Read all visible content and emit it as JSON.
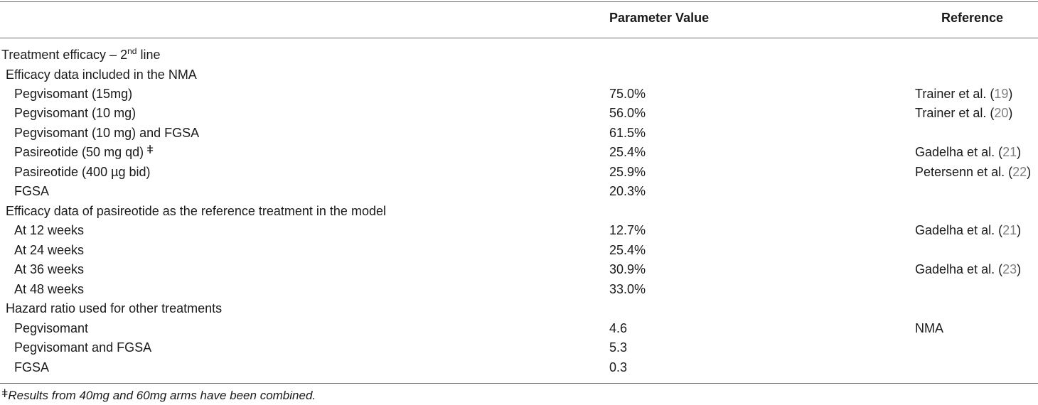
{
  "header": {
    "col_value": "Parameter Value",
    "col_reference": "Reference"
  },
  "section": {
    "title_main": "Treatment efficacy – 2",
    "title_sup": "nd",
    "title_tail": " line"
  },
  "rows": [
    {
      "label": "Efficacy data included in the NMA",
      "value": "",
      "ref": "",
      "num": ""
    },
    {
      "label": "Pegvisomant (15mg)",
      "value": "75.0%",
      "ref": "Trainer et al. (",
      "num": "19"
    },
    {
      "label": "Pegvisomant (10 mg)",
      "value": "56.0%",
      "ref": "Trainer et al. (",
      "num": "20"
    },
    {
      "label": "Pegvisomant (10 mg) and FGSA",
      "value": "61.5%",
      "ref": "",
      "num": ""
    },
    {
      "label": "Pasireotide (50 mg qd)",
      "value": "25.4%",
      "ref": "Gadelha et al. (",
      "num": "21"
    },
    {
      "label": "Pasireotide (400 µg bid)",
      "value": "25.9%",
      "ref": "Petersenn et al. (",
      "num": "22"
    },
    {
      "label": "FGSA",
      "value": "20.3%",
      "ref": "",
      "num": ""
    },
    {
      "label": "Efficacy data of pasireotide as the reference treatment in the model",
      "value": "",
      "ref": "",
      "num": ""
    },
    {
      "label": "At 12 weeks",
      "value": "12.7%",
      "ref": "Gadelha et al. (",
      "num": "21"
    },
    {
      "label": "At 24 weeks",
      "value": "25.4%",
      "ref": "",
      "num": ""
    },
    {
      "label": "At 36 weeks",
      "value": "30.9%",
      "ref": "Gadelha et al. (",
      "num": "23"
    },
    {
      "label": "At 48 weeks",
      "value": "33.0%",
      "ref": "",
      "num": ""
    },
    {
      "label": "Hazard ratio used for other treatments",
      "value": "",
      "ref": "",
      "num": ""
    },
    {
      "label": "Pegvisomant",
      "value": "4.6",
      "ref": "NMA",
      "num": ""
    },
    {
      "label": "Pegvisomant and FGSA",
      "value": "5.3",
      "ref": "",
      "num": ""
    },
    {
      "label": "FGSA",
      "value": "0.3",
      "ref": "",
      "num": ""
    }
  ],
  "marks": {
    "dagger": "ǂ",
    "close_paren": ")"
  },
  "footnote": {
    "mark": "ǂ",
    "text": "Results from 40mg and 60mg arms have been combined."
  }
}
